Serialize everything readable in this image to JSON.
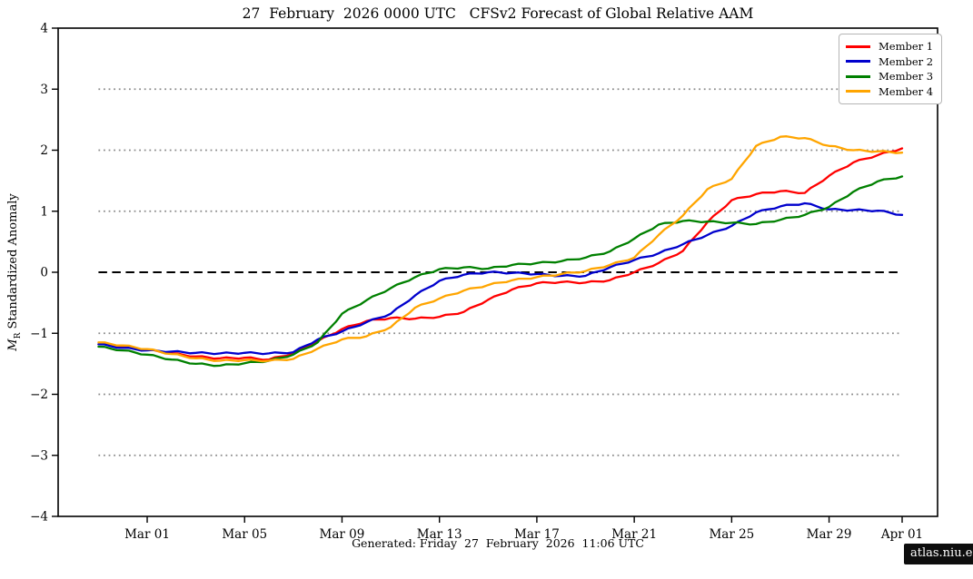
{
  "title": "27  February  2026 0000 UTC   CFSv2 Forecast of Global Relative AAM",
  "ylabel": {
    "math": "M",
    "sub": "R",
    "rest": " Standardized Anomaly"
  },
  "footer": {
    "generated": "Generated: Friday  27  February  2026  11:06 UTC",
    "badge": "atlas.niu.edu"
  },
  "legend": {
    "position": "top-right",
    "entries": [
      "Member 1",
      "Member 2",
      "Member 3",
      "Member 4"
    ]
  },
  "chart_data": {
    "type": "line",
    "title": "27  February  2026 0000 UTC   CFSv2 Forecast of Global Relative AAM",
    "xlabel": "",
    "ylabel": "M_R Standardized Anomaly",
    "x_days": [
      0,
      1,
      2,
      3,
      4,
      5,
      6,
      7,
      8,
      9,
      10,
      11,
      12,
      13,
      14,
      15,
      16,
      17,
      18,
      19,
      20,
      21,
      22,
      23,
      24,
      25,
      26,
      27,
      28,
      29,
      30,
      31,
      32,
      33
    ],
    "x_start_label": "Feb 27",
    "xtick_days": [
      2,
      6,
      10,
      14,
      18,
      22,
      26,
      30,
      33
    ],
    "xtick_labels": [
      "Mar 01",
      "Mar 05",
      "Mar 09",
      "Mar 13",
      "Mar 17",
      "Mar 21",
      "Mar 25",
      "Mar 29",
      "Apr 01"
    ],
    "ylim": [
      -4,
      4
    ],
    "yticks": [
      -4,
      -3,
      -2,
      -1,
      0,
      1,
      2,
      3,
      4
    ],
    "grid_dotted_levels": [
      -3,
      -2,
      -1,
      1,
      2,
      3
    ],
    "zero_line_level": 0,
    "grid_color": "#8a8a8a",
    "zero_line_color": "#000000",
    "legend_position": "top-right",
    "series": [
      {
        "name": "Member 1",
        "color": "#ff0000",
        "values": [
          -1.18,
          -1.22,
          -1.27,
          -1.33,
          -1.38,
          -1.41,
          -1.4,
          -1.43,
          -1.33,
          -1.13,
          -0.93,
          -0.8,
          -0.75,
          -0.76,
          -0.73,
          -0.65,
          -0.45,
          -0.28,
          -0.18,
          -0.16,
          -0.17,
          -0.13,
          0.0,
          0.15,
          0.35,
          0.82,
          1.18,
          1.28,
          1.33,
          1.3,
          1.58,
          1.8,
          1.92,
          2.03
        ]
      },
      {
        "name": "Member 2",
        "color": "#0000cd",
        "values": [
          -1.18,
          -1.24,
          -1.28,
          -1.3,
          -1.32,
          -1.33,
          -1.32,
          -1.33,
          -1.31,
          -1.1,
          -0.97,
          -0.82,
          -0.68,
          -0.38,
          -0.14,
          -0.04,
          0.0,
          -0.01,
          -0.03,
          -0.06,
          -0.06,
          0.08,
          0.2,
          0.31,
          0.46,
          0.61,
          0.76,
          0.98,
          1.08,
          1.13,
          1.03,
          1.02,
          1.01,
          0.94
        ]
      },
      {
        "name": "Member 3",
        "color": "#008000",
        "values": [
          -1.22,
          -1.28,
          -1.35,
          -1.43,
          -1.5,
          -1.53,
          -1.49,
          -1.45,
          -1.35,
          -1.15,
          -0.68,
          -0.46,
          -0.26,
          -0.08,
          0.05,
          0.08,
          0.06,
          0.12,
          0.15,
          0.18,
          0.24,
          0.34,
          0.55,
          0.78,
          0.84,
          0.83,
          0.81,
          0.79,
          0.86,
          0.94,
          1.07,
          1.32,
          1.49,
          1.57
        ]
      },
      {
        "name": "Member 4",
        "color": "#ffa500",
        "values": [
          -1.15,
          -1.2,
          -1.26,
          -1.34,
          -1.41,
          -1.45,
          -1.44,
          -1.45,
          -1.42,
          -1.25,
          -1.1,
          -1.05,
          -0.9,
          -0.58,
          -0.43,
          -0.3,
          -0.21,
          -0.13,
          -0.08,
          -0.03,
          0.02,
          0.12,
          0.24,
          0.61,
          0.93,
          1.36,
          1.53,
          2.07,
          2.22,
          2.2,
          2.07,
          2.0,
          1.98,
          1.96
        ]
      }
    ]
  }
}
